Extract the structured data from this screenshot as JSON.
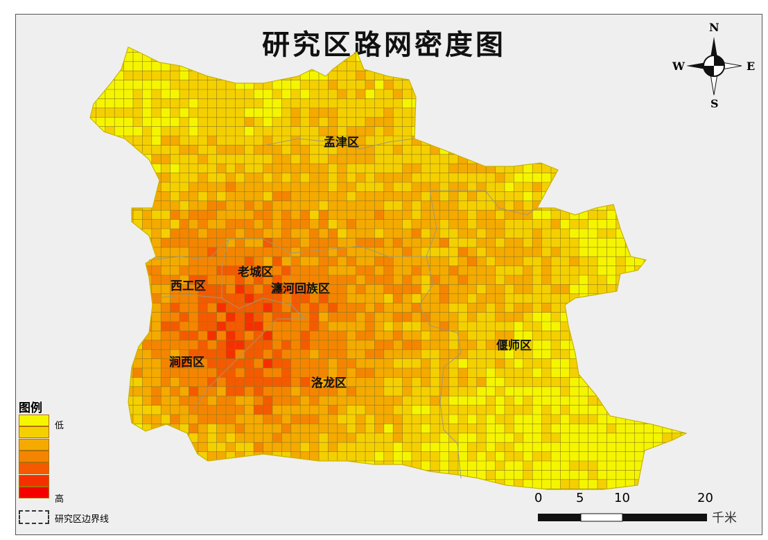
{
  "title": "研究区路网密度图",
  "districts": [
    {
      "name": "孟津区"
    },
    {
      "name": "老城区"
    },
    {
      "name": "西工区"
    },
    {
      "name": "瀍河回族区"
    },
    {
      "name": "涧西区"
    },
    {
      "name": "洛龙区"
    },
    {
      "name": "偃师区"
    }
  ],
  "legend": {
    "title": "图例",
    "low_label": "低",
    "high_label": "高",
    "classes": [
      "#f5f500",
      "#f5d000",
      "#f5aa00",
      "#f58500",
      "#f55a00",
      "#f53000",
      "#f50000"
    ],
    "boundary_label": "研究区边界线"
  },
  "north_arrow": {
    "n": "N",
    "s": "S",
    "e": "E",
    "w": "W"
  },
  "scale_bar": {
    "ticks": [
      "0",
      "5",
      "10",
      "20"
    ],
    "unit": "千米"
  }
}
